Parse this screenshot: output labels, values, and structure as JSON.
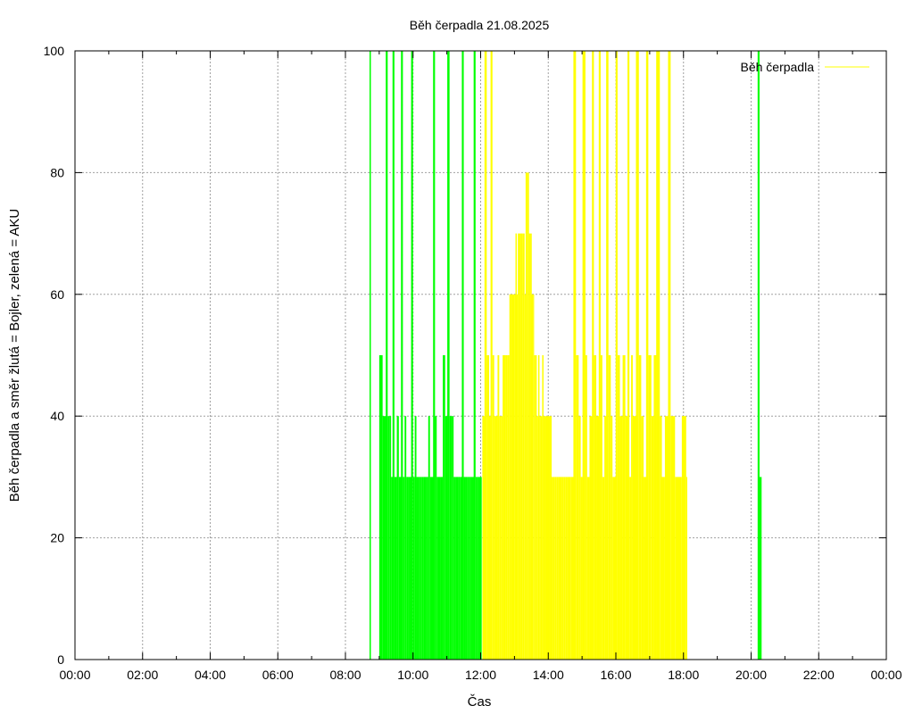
{
  "chart_data": {
    "type": "bar",
    "title": "Běh čerpadla 21.08.2025",
    "xlabel": "Čas",
    "ylabel": "Běh čerpadla a směr žlutá = Bojler, zelená = AKU",
    "x_unit": "hours of day",
    "xlim": [
      0,
      24
    ],
    "ylim": [
      0,
      100
    ],
    "x_ticks": [
      "00:00",
      "02:00",
      "04:00",
      "06:00",
      "08:00",
      "10:00",
      "12:00",
      "14:00",
      "16:00",
      "18:00",
      "20:00",
      "22:00",
      "00:00"
    ],
    "y_ticks": [
      "0",
      "20",
      "40",
      "60",
      "80",
      "100"
    ],
    "grid": true,
    "legend": {
      "position": "top-right",
      "entries": [
        {
          "label": "Běh čerpadla",
          "color": "#ffff00"
        }
      ]
    },
    "colors": {
      "bojler": "#ffff00",
      "aku": "#00ff00"
    },
    "series": [
      {
        "name": "Běh čerpadla",
        "color": "#ffff00",
        "points": [
          [
            12.05,
            40
          ],
          [
            12.12,
            100
          ],
          [
            12.18,
            50
          ],
          [
            12.25,
            40
          ],
          [
            12.3,
            100
          ],
          [
            12.35,
            50
          ],
          [
            12.4,
            40
          ],
          [
            12.45,
            40
          ],
          [
            12.5,
            50
          ],
          [
            12.55,
            40
          ],
          [
            12.6,
            40
          ],
          [
            12.65,
            50
          ],
          [
            12.7,
            50
          ],
          [
            12.75,
            50
          ],
          [
            12.8,
            50
          ],
          [
            12.85,
            60
          ],
          [
            12.9,
            60
          ],
          [
            12.95,
            60
          ],
          [
            13.0,
            60
          ],
          [
            13.03,
            70
          ],
          [
            13.07,
            60
          ],
          [
            13.1,
            70
          ],
          [
            13.15,
            70
          ],
          [
            13.2,
            70
          ],
          [
            13.25,
            70
          ],
          [
            13.3,
            60
          ],
          [
            13.33,
            80
          ],
          [
            13.38,
            80
          ],
          [
            13.43,
            70
          ],
          [
            13.48,
            70
          ],
          [
            13.5,
            60
          ],
          [
            13.55,
            60
          ],
          [
            13.58,
            50
          ],
          [
            13.62,
            50
          ],
          [
            13.66,
            40
          ],
          [
            13.7,
            50
          ],
          [
            13.74,
            40
          ],
          [
            13.78,
            40
          ],
          [
            13.82,
            50
          ],
          [
            13.86,
            40
          ],
          [
            13.9,
            40
          ],
          [
            13.94,
            40
          ],
          [
            13.98,
            40
          ],
          [
            14.02,
            40
          ],
          [
            14.06,
            40
          ],
          [
            14.1,
            30
          ],
          [
            14.15,
            30
          ],
          [
            14.2,
            30
          ],
          [
            14.25,
            30
          ],
          [
            14.3,
            30
          ],
          [
            14.35,
            30
          ],
          [
            14.4,
            30
          ],
          [
            14.45,
            30
          ],
          [
            14.5,
            30
          ],
          [
            14.55,
            30
          ],
          [
            14.6,
            30
          ],
          [
            14.66,
            30
          ],
          [
            14.75,
            100
          ],
          [
            14.82,
            50
          ],
          [
            14.9,
            40
          ],
          [
            14.96,
            30
          ],
          [
            15.02,
            100
          ],
          [
            15.1,
            50
          ],
          [
            15.15,
            30
          ],
          [
            15.22,
            40
          ],
          [
            15.3,
            100
          ],
          [
            15.35,
            50
          ],
          [
            15.42,
            40
          ],
          [
            15.5,
            100
          ],
          [
            15.55,
            50
          ],
          [
            15.6,
            30
          ],
          [
            15.66,
            40
          ],
          [
            15.72,
            100
          ],
          [
            15.78,
            50
          ],
          [
            15.85,
            40
          ],
          [
            15.9,
            30
          ],
          [
            16.0,
            100
          ],
          [
            16.05,
            50
          ],
          [
            16.12,
            40
          ],
          [
            16.2,
            50
          ],
          [
            16.28,
            40
          ],
          [
            16.35,
            100
          ],
          [
            16.4,
            30
          ],
          [
            16.45,
            50
          ],
          [
            16.5,
            40
          ],
          [
            16.6,
            100
          ],
          [
            16.68,
            50
          ],
          [
            16.75,
            40
          ],
          [
            16.82,
            30
          ],
          [
            16.9,
            100
          ],
          [
            16.96,
            50
          ],
          [
            17.05,
            40
          ],
          [
            17.12,
            50
          ],
          [
            17.2,
            100
          ],
          [
            17.3,
            40
          ],
          [
            17.36,
            30
          ],
          [
            17.45,
            40
          ],
          [
            17.55,
            100
          ],
          [
            17.62,
            40
          ],
          [
            17.75,
            30
          ],
          [
            17.95,
            40
          ],
          [
            18.08,
            30
          ]
        ]
      },
      {
        "name": "",
        "color": "#00ff00",
        "points": [
          [
            8.72,
            100
          ],
          [
            9.0,
            50
          ],
          [
            9.1,
            40
          ],
          [
            9.2,
            100
          ],
          [
            9.25,
            40
          ],
          [
            9.3,
            40
          ],
          [
            9.35,
            30
          ],
          [
            9.4,
            100
          ],
          [
            9.45,
            30
          ],
          [
            9.52,
            40
          ],
          [
            9.58,
            30
          ],
          [
            9.65,
            100
          ],
          [
            9.7,
            30
          ],
          [
            9.75,
            40
          ],
          [
            9.8,
            30
          ],
          [
            9.85,
            30
          ],
          [
            9.9,
            30
          ],
          [
            9.95,
            100
          ],
          [
            10.0,
            30
          ],
          [
            10.05,
            40
          ],
          [
            10.1,
            30
          ],
          [
            10.15,
            30
          ],
          [
            10.2,
            30
          ],
          [
            10.25,
            30
          ],
          [
            10.3,
            30
          ],
          [
            10.35,
            30
          ],
          [
            10.4,
            30
          ],
          [
            10.45,
            40
          ],
          [
            10.5,
            30
          ],
          [
            10.6,
            100
          ],
          [
            10.65,
            40
          ],
          [
            10.7,
            30
          ],
          [
            10.8,
            30
          ],
          [
            10.88,
            50
          ],
          [
            10.95,
            40
          ],
          [
            11.02,
            100
          ],
          [
            11.08,
            40
          ],
          [
            11.15,
            40
          ],
          [
            11.2,
            30
          ],
          [
            11.25,
            30
          ],
          [
            11.3,
            30
          ],
          [
            11.35,
            30
          ],
          [
            11.4,
            30
          ],
          [
            11.45,
            100
          ],
          [
            11.5,
            30
          ],
          [
            11.55,
            30
          ],
          [
            11.6,
            30
          ],
          [
            11.65,
            30
          ],
          [
            11.7,
            30
          ],
          [
            11.75,
            30
          ],
          [
            11.8,
            100
          ],
          [
            11.85,
            30
          ],
          [
            11.9,
            30
          ],
          [
            11.95,
            30
          ],
          [
            12.0,
            30
          ],
          [
            20.2,
            100
          ],
          [
            20.25,
            30
          ],
          [
            20.28,
            30
          ]
        ]
      }
    ]
  }
}
